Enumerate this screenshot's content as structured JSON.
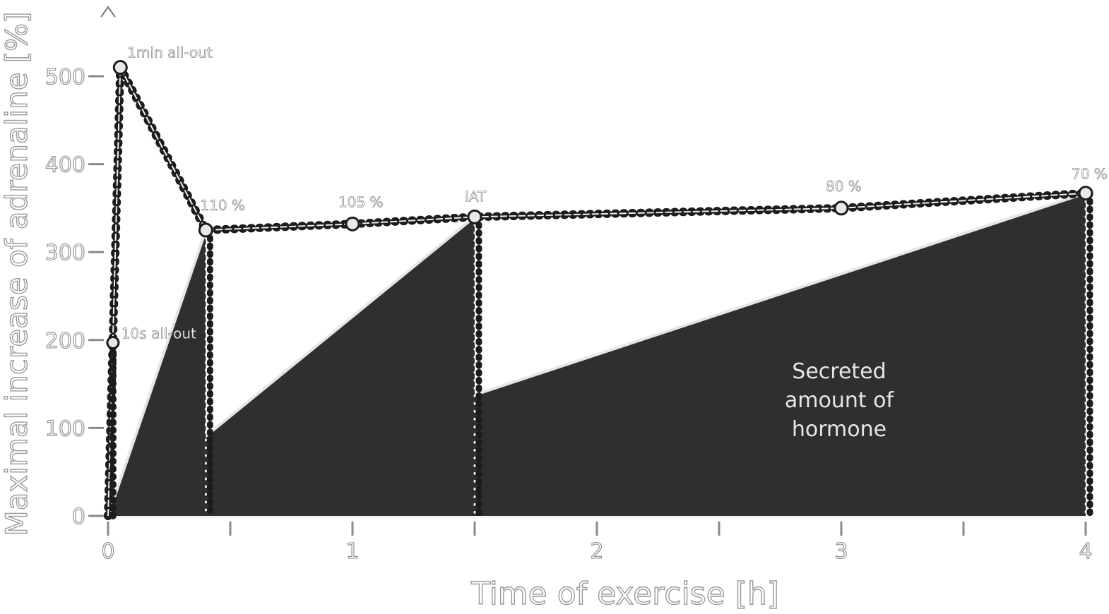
{
  "chart_data": {
    "type": "area",
    "xlabel": "Time of exercise [h]",
    "ylabel": "Maximal increase of adrenaline [%]",
    "xlim": [
      0,
      4
    ],
    "ylim": [
      0,
      500
    ],
    "x_ticks": [
      "0",
      "1",
      "2",
      "3",
      "4"
    ],
    "y_ticks": [
      "0",
      "100",
      "200",
      "300",
      "400",
      "500"
    ],
    "grid": false,
    "legend": "none",
    "peak_curve": {
      "points": [
        {
          "x": 0.05,
          "y": 510,
          "label": "1min all-out"
        },
        {
          "x": 0.4,
          "y": 325,
          "label": "110 %"
        },
        {
          "x": 1.0,
          "y": 332,
          "label": "105 %"
        },
        {
          "x": 1.5,
          "y": 340,
          "label": "IAT"
        },
        {
          "x": 3.0,
          "y": 350,
          "label": "80 %"
        },
        {
          "x": 4.0,
          "y": 367,
          "label": "70 %"
        }
      ]
    },
    "short_sprint": {
      "x": 0.02,
      "y": 197,
      "label": "10s all-out"
    },
    "areas": [
      {
        "x_end": 0.4,
        "y_peak": 325
      },
      {
        "x_end": 1.5,
        "y_peak": 340
      },
      {
        "x_end": 4.0,
        "y_peak": 367
      }
    ],
    "annotation": "Secreted amount of hormone"
  },
  "colors": {
    "area_fill": "#2f2f2f",
    "line": "#1c1c1c",
    "highlight": "#e6e6e6"
  }
}
